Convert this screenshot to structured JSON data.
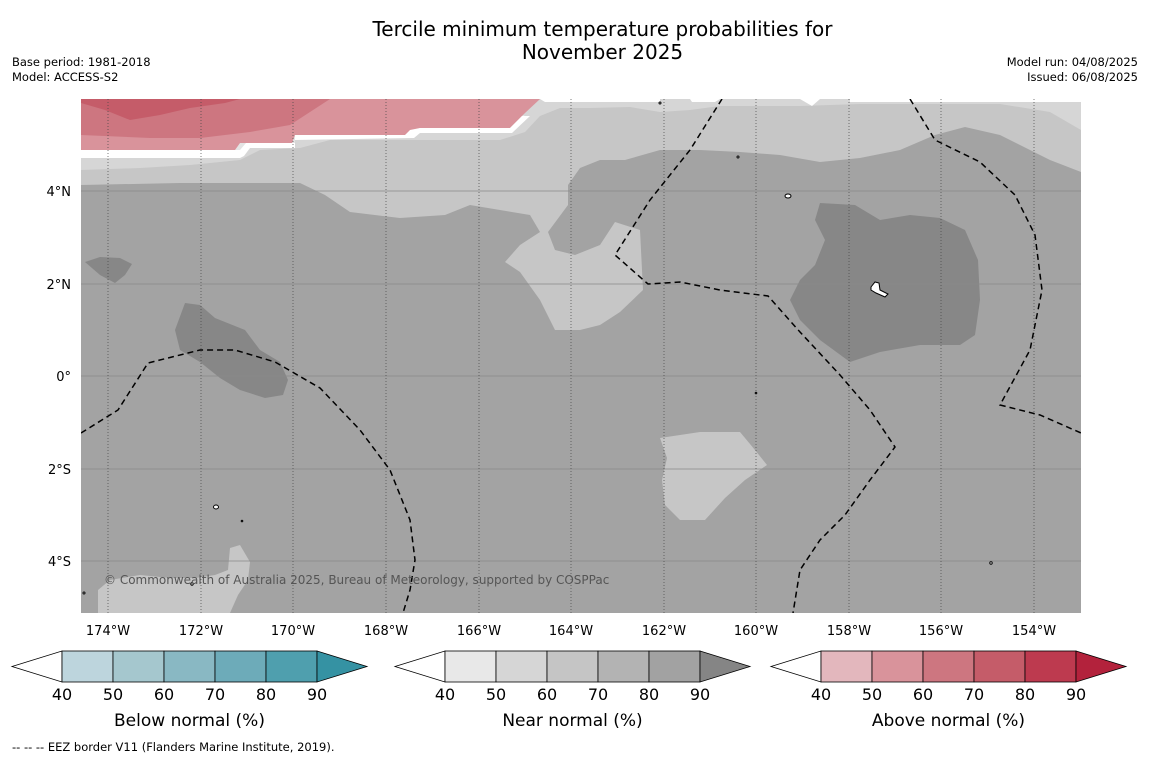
{
  "title_line1": "Tercile minimum temperature probabilities for",
  "title_line2": "November 2025",
  "base_period": "Base period: 1981-2018",
  "model": "Model: ACCESS-S2",
  "model_run": "Model run: 04/08/2025",
  "issued": "Issued: 06/08/2025",
  "copyright": "© Commonwealth of Australia 2025, Bureau of Meteorology, supported by COSPPac",
  "footnote": "--  --  -- EEZ border V11 (Flanders Marine Institute, 2019).",
  "x_ticks": [
    "174°W",
    "172°W",
    "170°W",
    "168°W",
    "166°W",
    "164°W",
    "162°W",
    "160°W",
    "158°W",
    "156°W",
    "154°W"
  ],
  "y_ticks": [
    "4°N",
    "2°N",
    "0°",
    "2°S",
    "4°S"
  ],
  "colorbars": [
    {
      "label": "Below normal (%)",
      "ticks": [
        "40",
        "50",
        "60",
        "70",
        "80",
        "90"
      ],
      "colors": [
        "#ffffff",
        "#bdd5dd",
        "#a5c7ce",
        "#89b8c3",
        "#6dabb9",
        "#4f9fae",
        "#3592a3"
      ]
    },
    {
      "label": "Near normal (%)",
      "ticks": [
        "40",
        "50",
        "60",
        "70",
        "80",
        "90"
      ],
      "colors": [
        "#ffffff",
        "#e8e8e8",
        "#d6d6d6",
        "#c5c5c5",
        "#b3b3b3",
        "#a2a2a2",
        "#858585"
      ]
    },
    {
      "label": "Above normal (%)",
      "ticks": [
        "40",
        "50",
        "60",
        "70",
        "80",
        "90"
      ],
      "colors": [
        "#ffffff",
        "#e3b7bd",
        "#d9939b",
        "#cd7680",
        "#c55c69",
        "#bd3a4f",
        "#b3223c"
      ]
    }
  ]
}
